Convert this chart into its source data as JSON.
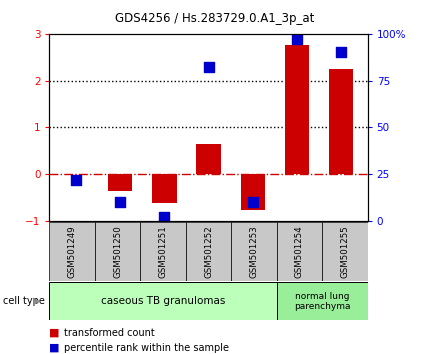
{
  "title": "GDS4256 / Hs.283729.0.A1_3p_at",
  "samples": [
    "GSM501249",
    "GSM501250",
    "GSM501251",
    "GSM501252",
    "GSM501253",
    "GSM501254",
    "GSM501255"
  ],
  "transformed_count": [
    0.0,
    -0.35,
    -0.62,
    0.65,
    -0.75,
    2.75,
    2.25
  ],
  "percentile_rank_pct": [
    22,
    10,
    2,
    82,
    10,
    97,
    90
  ],
  "ylim": [
    -1,
    3
  ],
  "y2lim": [
    0,
    100
  ],
  "bar_color": "#cc0000",
  "dot_color": "#0000cc",
  "hline_color": "#cc0000",
  "dotted_line_color": "#000000",
  "plot_bg_color": "#ffffff",
  "tick_label_bg": "#c8c8c8",
  "group1_color": "#bbffbb",
  "group2_color": "#99ee99",
  "group1_label": "caseous TB granulomas",
  "group2_label": "normal lung\nparenchyma",
  "group1_count": 5,
  "group2_count": 2,
  "cell_type_label": "cell type",
  "legend_bar_label": "transformed count",
  "legend_dot_label": "percentile rank within the sample",
  "yticks_left": [
    -1,
    0,
    1,
    2,
    3
  ],
  "yticks_right": [
    0,
    25,
    50,
    75,
    100
  ],
  "bar_width": 0.55,
  "dot_size": 45
}
